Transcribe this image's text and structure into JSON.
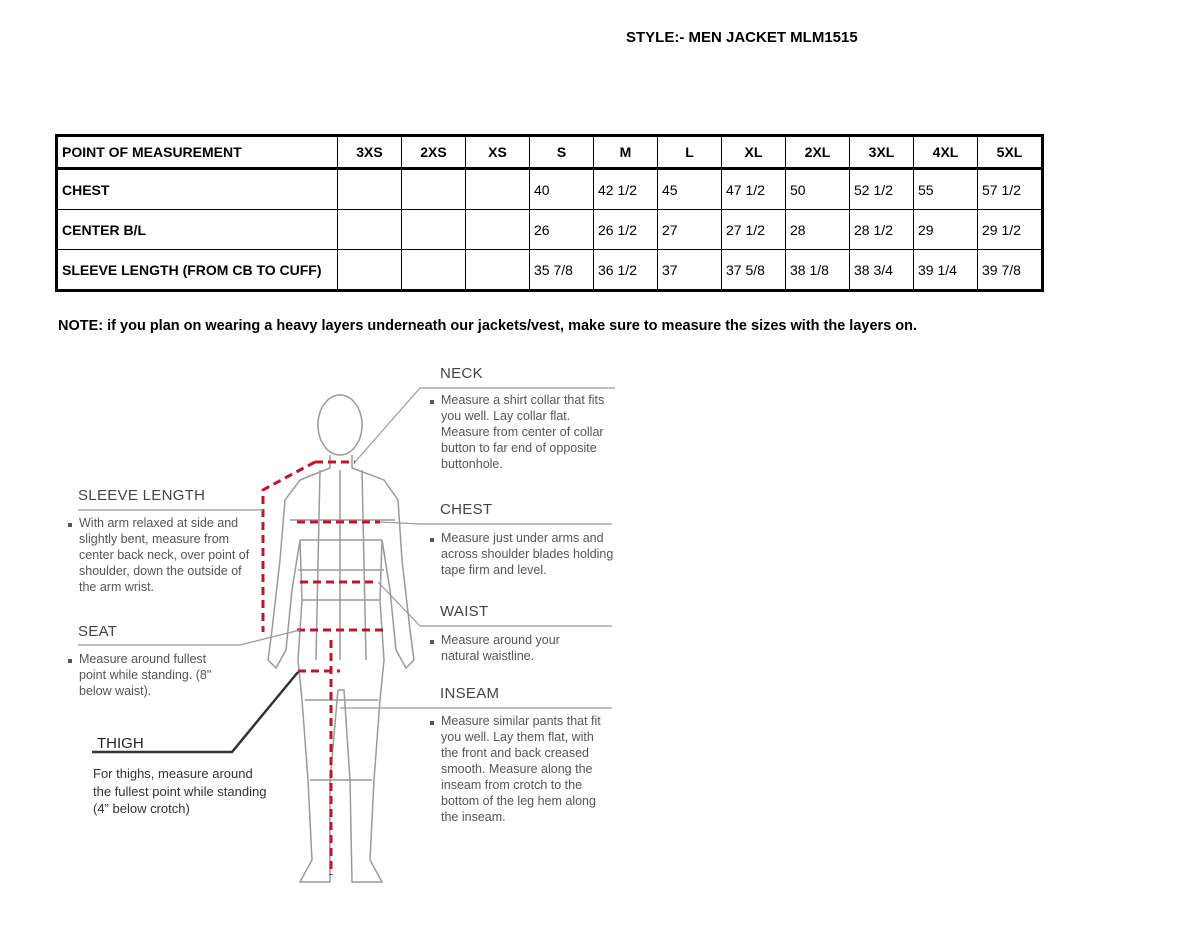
{
  "title": "STYLE:- MEN JACKET  MLM1515",
  "table": {
    "header": [
      "POINT OF MEASUREMENT",
      "3XS",
      "2XS",
      "XS",
      "S",
      "M",
      "L",
      "XL",
      "2XL",
      "3XL",
      "4XL",
      "5XL"
    ],
    "rows": [
      [
        "CHEST",
        "",
        "",
        "",
        "40",
        "42 1/2",
        "45",
        "47 1/2",
        "50",
        "52 1/2",
        "55",
        "57 1/2"
      ],
      [
        "CENTER B/L",
        "",
        "",
        "",
        "26",
        "26 1/2",
        "27",
        "27 1/2",
        "28",
        "28 1/2",
        "29",
        "29 1/2"
      ],
      [
        "SLEEVE LENGTH (FROM CB TO CUFF)",
        "",
        "",
        "",
        "35 7/8",
        "36 1/2",
        "37",
        "37 5/8",
        "38 1/8",
        "38 3/4",
        "39 1/4",
        "39 7/8"
      ]
    ]
  },
  "note": "NOTE: if you plan on wearing a heavy layers underneath our jackets/vest, make sure to measure the sizes with the layers on.",
  "guide": {
    "neck": {
      "label": "NECK",
      "text": "Measure a shirt collar that fits you well. Lay collar flat. Measure from center of collar button to far end of opposite buttonhole."
    },
    "chest": {
      "label": "CHEST",
      "text": "Measure just under arms and across shoulder blades holding tape firm and level."
    },
    "waist": {
      "label": "WAIST",
      "text": "Measure around your natural waistline."
    },
    "inseam": {
      "label": "INSEAM",
      "text": "Measure similar pants that fit you well. Lay them flat, with the front and back creased smooth. Measure along the inseam from crotch to the bottom of the leg hem along the inseam."
    },
    "sleeve": {
      "label": "SLEEVE LENGTH",
      "text": "With arm relaxed at side and slightly bent, measure from center back neck, over point of shoulder, down the outside of the arm wrist."
    },
    "seat": {
      "label": "SEAT",
      "text": "Measure around fullest point while standing. (8\" below waist)."
    },
    "thigh": {
      "label": "THIGH",
      "text": "For thighs, measure around the fullest point while standing (4” below crotch)"
    }
  },
  "colors": {
    "measure_line": "#c0142a",
    "figure": "#999999"
  }
}
